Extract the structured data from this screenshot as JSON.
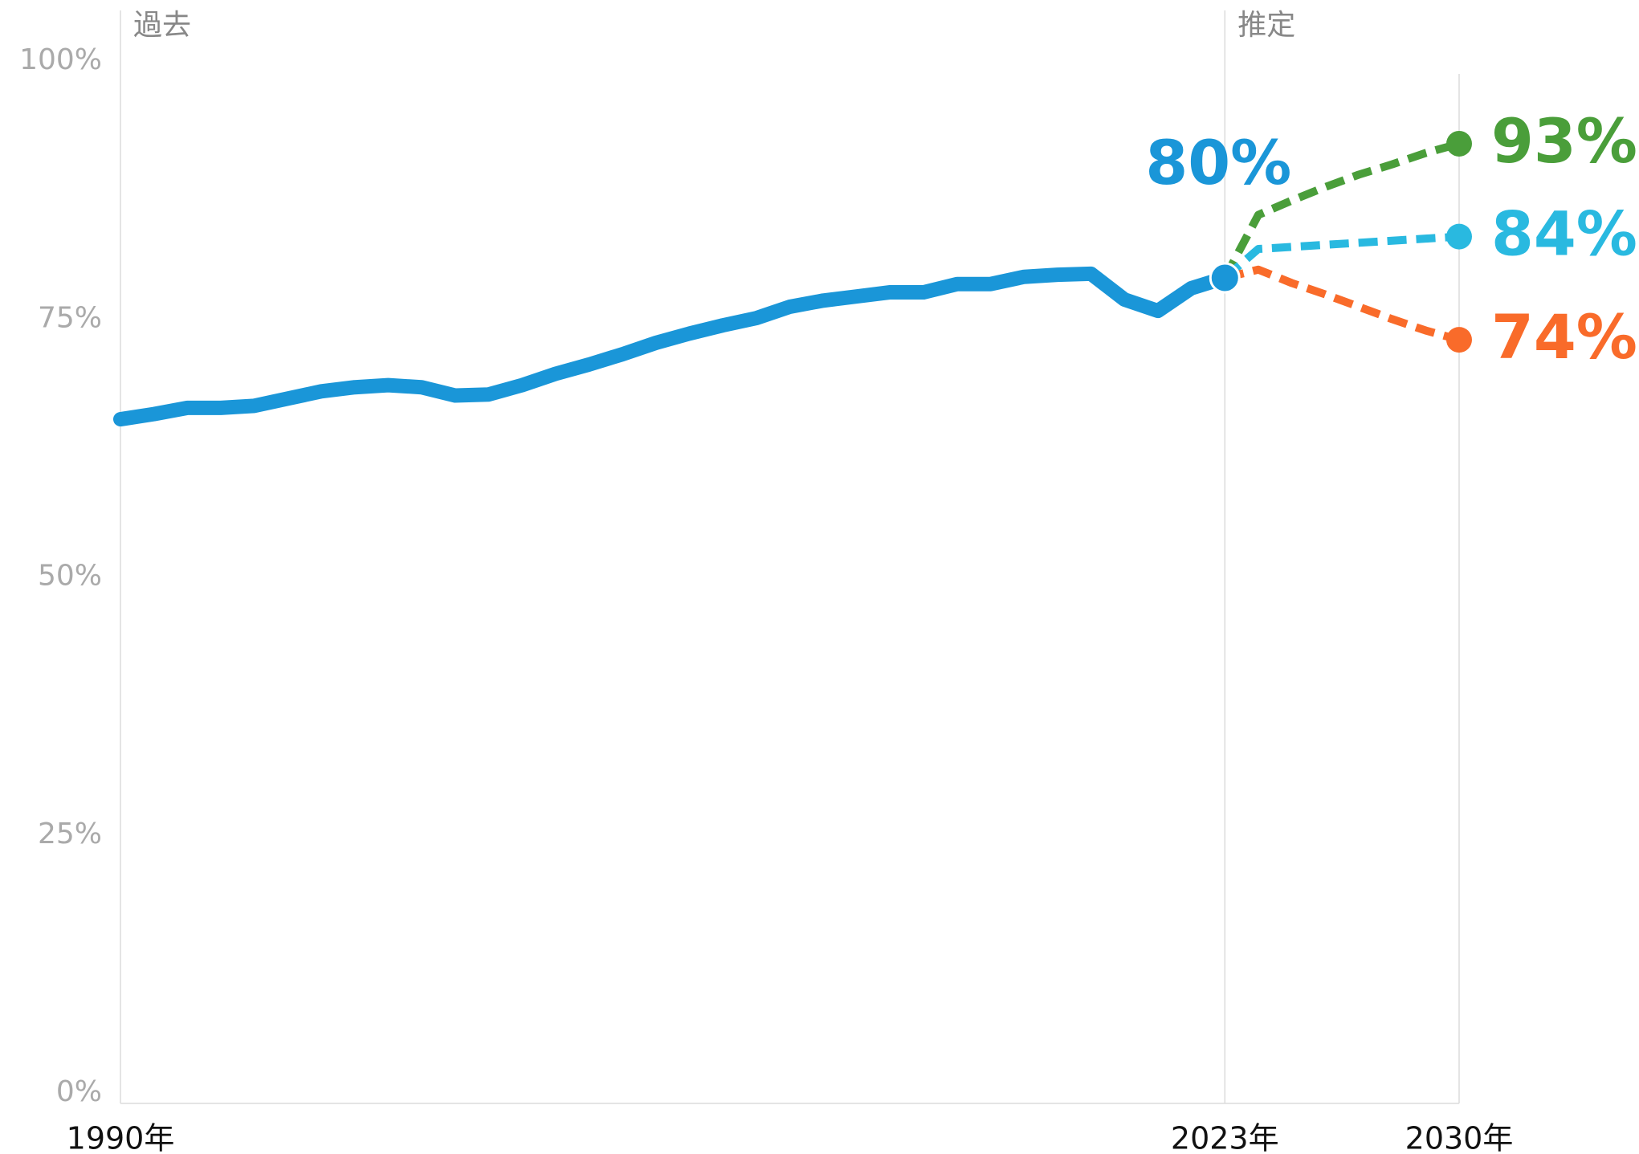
{
  "chart_data": {
    "type": "line",
    "regions": [
      {
        "label": "過去",
        "start": 1990
      },
      {
        "label": "推定",
        "start": 2023
      }
    ],
    "xlim": [
      1990,
      2030
    ],
    "xticks": [
      {
        "value": 1990,
        "label": "1990年"
      },
      {
        "value": 2023,
        "label": "2023年"
      },
      {
        "value": 2030,
        "label": "2030年"
      }
    ],
    "ylim": [
      0,
      100
    ],
    "yticks": [
      {
        "value": 0,
        "label": "0%"
      },
      {
        "value": 25,
        "label": "25%"
      },
      {
        "value": 50,
        "label": "50%"
      },
      {
        "value": 75,
        "label": "75%"
      },
      {
        "value": 100,
        "label": "100%"
      }
    ],
    "series": [
      {
        "color": "#1a96d8",
        "dashed": false,
        "x": [
          1990,
          1991,
          1992,
          1993,
          1994,
          1995,
          1996,
          1997,
          1998,
          1999,
          2000,
          2001,
          2002,
          2003,
          2004,
          2005,
          2006,
          2007,
          2008,
          2009,
          2010,
          2011,
          2012,
          2013,
          2014,
          2015,
          2016,
          2017,
          2018,
          2019,
          2020,
          2021,
          2022,
          2023
        ],
        "values": [
          66.3,
          66.8,
          67.4,
          67.4,
          67.6,
          68.3,
          69.0,
          69.4,
          69.6,
          69.4,
          68.6,
          68.7,
          69.6,
          70.7,
          71.6,
          72.6,
          73.7,
          74.6,
          75.4,
          76.1,
          77.2,
          77.8,
          78.2,
          78.6,
          78.6,
          79.4,
          79.4,
          80.1,
          80.3,
          80.4,
          77.9,
          76.8,
          79.0,
          80
        ],
        "value_labels": [
          null,
          null,
          null,
          null,
          null,
          null,
          null,
          null,
          null,
          null,
          null,
          null,
          null,
          null,
          null,
          null,
          null,
          null,
          null,
          null,
          null,
          null,
          null,
          null,
          null,
          null,
          null,
          null,
          null,
          null,
          null,
          null,
          null,
          "80%"
        ]
      },
      {
        "color": "#4a9e3a",
        "dashed": true,
        "x": [
          2023,
          2024,
          2025,
          2026,
          2027,
          2028,
          2029,
          2030
        ],
        "values": [
          80,
          86.1,
          87.5,
          88.8,
          90.0,
          91.0,
          92.1,
          93
        ],
        "value_labels": [
          null,
          null,
          null,
          null,
          null,
          null,
          null,
          "93%"
        ]
      },
      {
        "color": "#29b9e0",
        "dashed": true,
        "x": [
          2023,
          2024,
          2025,
          2026,
          2027,
          2028,
          2029,
          2030
        ],
        "values": [
          80,
          82.8,
          83.0,
          83.2,
          83.4,
          83.6,
          83.8,
          84
        ],
        "value_labels": [
          null,
          null,
          null,
          null,
          null,
          null,
          null,
          "84%"
        ]
      },
      {
        "color": "#f96b2a",
        "dashed": true,
        "x": [
          2023,
          2024,
          2025,
          2026,
          2027,
          2028,
          2029,
          2030
        ],
        "values": [
          80,
          80.8,
          79.5,
          78.4,
          77.2,
          76.0,
          74.9,
          74
        ],
        "value_labels": [
          null,
          null,
          null,
          null,
          null,
          null,
          null,
          "74%"
        ]
      }
    ]
  }
}
